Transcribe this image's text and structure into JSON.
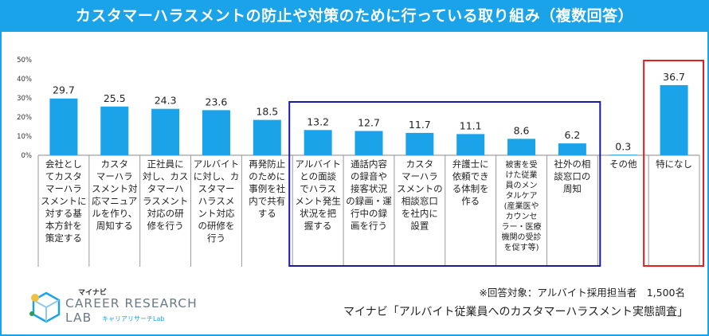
{
  "header": {
    "title": "カスタマーハラスメントの防止や対策のために行っている取り組み（複数回答）"
  },
  "chart_data": {
    "type": "bar",
    "title": "カスタマーハラスメントの防止や対策のために行っている取り組み（複数回答）",
    "ylabel": "",
    "xlabel": "",
    "ylim": [
      0,
      50
    ],
    "yticks": [
      "0%",
      "10%",
      "20%",
      "30%",
      "40%",
      "50%"
    ],
    "grid": false,
    "values": [
      29.7,
      25.5,
      24.3,
      23.6,
      18.5,
      13.2,
      12.7,
      11.7,
      11.1,
      8.6,
      6.2,
      0.3,
      36.7
    ],
    "value_labels": [
      "29.7",
      "25.5",
      "24.3",
      "23.6",
      "18.5",
      "13.2",
      "12.7",
      "11.7",
      "11.1",
      "8.6",
      "6.2",
      "0.3",
      "36.7"
    ],
    "categories": [
      [
        "会社とし",
        "てカスタ",
        "マーハラ",
        "スメントに",
        "対する基",
        "本方針を",
        "策定する"
      ],
      [
        "カスタ",
        "マーハラ",
        "スメント対",
        "応マニュア",
        "ルを作り、",
        "周知する"
      ],
      [
        "正社員に",
        "対し、カス",
        "タマーハ",
        "ラスメント",
        "対応の研",
        "修を行う"
      ],
      [
        "アルバイト",
        "に対し、カ",
        "スタマー",
        "ハラスメ",
        "ント対応",
        "の研修を",
        "行う"
      ],
      [
        "再発防止",
        "のために",
        "事例を社",
        "内で共有",
        "する"
      ],
      [
        "アルバイト",
        "との面談",
        "でハラス",
        "メント発生",
        "状況を把",
        "握する"
      ],
      [
        "通話内容",
        "の録音や",
        "接客状況",
        "の録画・運",
        "行中の録",
        "画を行う"
      ],
      [
        "カスタ",
        "マーハラ",
        "スメントの",
        "相談窓口",
        "を社内に",
        "設置"
      ],
      [
        "弁護士に",
        "依頼でき",
        "る体制を",
        "作る"
      ],
      [
        "被害を受",
        "けた従業",
        "員のメン",
        "タルケア",
        "(産業医や",
        "カウンセ",
        "ラー・医療",
        "機関の受診",
        "を促す等)"
      ],
      [
        "社外の相",
        "談窓口の",
        "周知"
      ],
      [
        "その他"
      ],
      [
        "特になし"
      ]
    ],
    "bar_color": "#1aa3e8",
    "highlight_blue_color": "#1a1aa0",
    "highlight_red_color": "#e02020"
  },
  "footer": {
    "note": "※回答対象：アルバイト採用担当者　1,500名",
    "source": "マイナビ「アルバイト従業員へのカスタマーハラスメント実態調査」"
  },
  "logo": {
    "brand": "マイナビ",
    "line1": "CAREER RESEARCH",
    "line2": "LAB",
    "sub": "キャリアリサーチLab"
  }
}
